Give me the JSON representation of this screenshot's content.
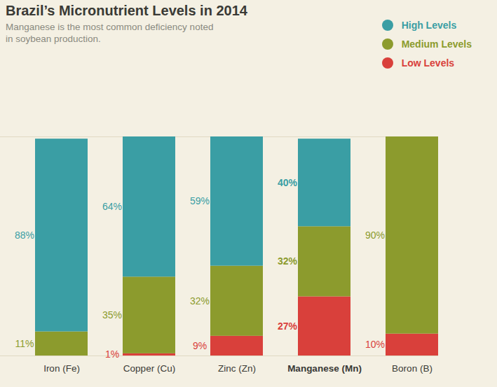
{
  "chart_data": {
    "type": "bar",
    "stacked": true,
    "data_labels": true,
    "tick_labels": "x",
    "legend": "top-right",
    "title": "Brazil’s Micronutrient Levels in 2014",
    "subtitle": "Manganese is the most common deficiency noted in soybean production.",
    "categories": [
      "Iron (Fe)",
      "Copper (Cu)",
      "Zinc (Zn)",
      "Manganese (Mn)",
      "Boron (B)"
    ],
    "ylim": [
      0,
      100
    ],
    "series": [
      {
        "name": "High Levels",
        "color": "#3a9ea4",
        "values": [
          88,
          64,
          59,
          40,
          null
        ],
        "value_labels": [
          "88%",
          "64%",
          "59%",
          "40%",
          null
        ]
      },
      {
        "name": "Medium Levels",
        "color": "#8c9b2d",
        "values": [
          11,
          35,
          32,
          32,
          90
        ],
        "value_labels": [
          "11%",
          "35%",
          "32%",
          "32%",
          "90%"
        ]
      },
      {
        "name": "Low Levels",
        "color": "#d9403b",
        "values": [
          null,
          1,
          9,
          27,
          10
        ],
        "value_labels": [
          null,
          "1%",
          "9%",
          "27%",
          "10%"
        ]
      }
    ]
  }
}
